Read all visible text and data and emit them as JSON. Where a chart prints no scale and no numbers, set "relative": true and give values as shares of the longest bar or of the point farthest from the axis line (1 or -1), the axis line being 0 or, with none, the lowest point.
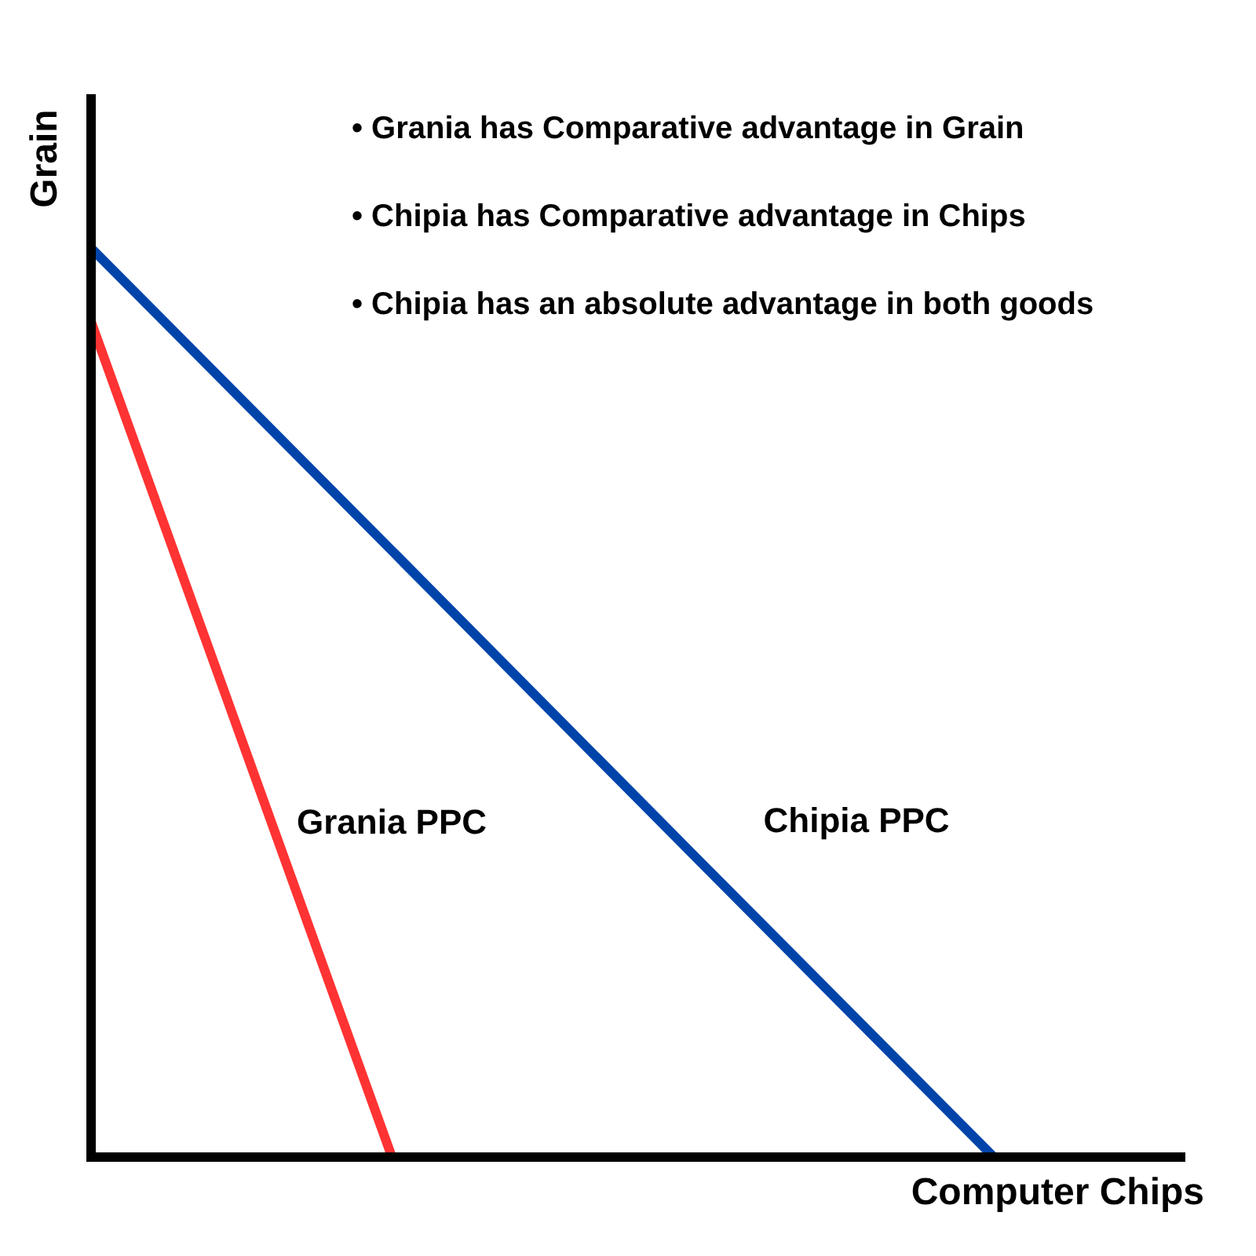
{
  "chart_data": {
    "type": "line",
    "relative": true,
    "xlabel": "Computer Chips",
    "ylabel": "Grain",
    "categories": [
      null,
      null,
      null,
      null
    ],
    "tick_labels": false,
    "grid": false,
    "legend": false,
    "line_style": "solid",
    "annotations": [
      "• Grania has Comparative advantage in Grain",
      "• Chipia has Comparative advantage in Chips",
      "• Chipia has an absolute advantage in both goods"
    ],
    "series": [
      {
        "name": "Grania PPC",
        "color": "#ff3333",
        "values": [
          0.919,
          0,
          null,
          null
        ]
      },
      {
        "name": "Chipia PPC",
        "color": "#0044aa",
        "values": [
          1,
          0.667,
          0.333,
          0
        ]
      }
    ]
  }
}
